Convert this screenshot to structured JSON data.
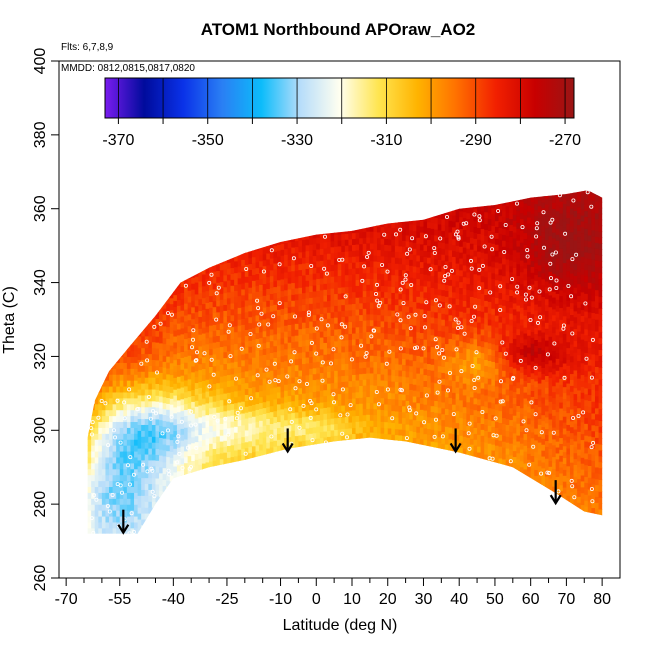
{
  "chart_data": {
    "type": "heatmap",
    "title": "ATOM1 Northbound APOraw_AO2",
    "flights_label": "Flts: 6,7,8,9",
    "dates_label": "MMDD: 0812,0815,0817,0820",
    "xlabel": "Latitude (deg N)",
    "ylabel": "Theta (C)",
    "xlim": [
      -72,
      85
    ],
    "ylim": [
      260,
      400
    ],
    "x_ticks_major": [
      -70,
      -55,
      -40,
      -25,
      -10,
      0,
      10,
      20,
      30,
      40,
      50,
      60,
      70,
      80
    ],
    "x_tick_labels": [
      "-70",
      "-55",
      "-40",
      "-25",
      "-10",
      "0",
      "10",
      "20",
      "30",
      "40",
      "50",
      "60",
      "70",
      "80"
    ],
    "x_ticks_minor": [
      -65,
      -60,
      -50,
      -45,
      -35,
      -30,
      -20,
      -15,
      -5,
      5,
      15,
      25,
      35,
      45,
      55,
      65,
      75
    ],
    "y_ticks": [
      260,
      280,
      300,
      320,
      340,
      360,
      380,
      400
    ],
    "y_tick_labels": [
      "260",
      "280",
      "300",
      "320",
      "340",
      "360",
      "380",
      "400"
    ],
    "colorbar": {
      "ticks": [
        -370,
        -350,
        -330,
        -310,
        -290,
        -270
      ],
      "tick_labels": [
        "-370",
        "-350",
        "-330",
        "-310",
        "-290",
        "-270"
      ],
      "range": [
        -373,
        -268
      ],
      "colors": [
        "#7a1cf0",
        "#000b9c",
        "#0a32e8",
        "#2a7ff4",
        "#0cbcfa",
        "#b7ddfa",
        "#fffff0",
        "#ffe550",
        "#ffb300",
        "#ff7000",
        "#f22000",
        "#c80000",
        "#9a1515"
      ]
    },
    "domain": {
      "top": [
        [
          -64,
          298
        ],
        [
          -62,
          308
        ],
        [
          -58,
          316
        ],
        [
          -52,
          323
        ],
        [
          -45,
          331
        ],
        [
          -38,
          340
        ],
        [
          -30,
          344
        ],
        [
          -20,
          348
        ],
        [
          -10,
          351
        ],
        [
          0,
          353
        ],
        [
          10,
          354
        ],
        [
          20,
          356
        ],
        [
          30,
          357
        ],
        [
          40,
          360
        ],
        [
          50,
          361
        ],
        [
          60,
          363
        ],
        [
          70,
          364
        ],
        [
          76,
          365
        ],
        [
          80,
          363
        ]
      ],
      "bottom": [
        [
          -64,
          272
        ],
        [
          -50,
          272
        ],
        [
          -45,
          280
        ],
        [
          -40,
          287
        ],
        [
          -30,
          290
        ],
        [
          -20,
          292
        ],
        [
          -8,
          295
        ],
        [
          5,
          297
        ],
        [
          15,
          298
        ],
        [
          25,
          297
        ],
        [
          35,
          295
        ],
        [
          40,
          294
        ],
        [
          55,
          290
        ],
        [
          67,
          283
        ],
        [
          75,
          278
        ],
        [
          80,
          277
        ]
      ]
    },
    "anomaly": [
      {
        "lon": -45,
        "th": 300,
        "dv": -22,
        "r": 16,
        "rt": 10
      },
      {
        "lon": -55,
        "th": 285,
        "dv": -28,
        "r": 14,
        "rt": 20
      },
      {
        "lon": -20,
        "th": 300,
        "dv": -12,
        "r": 16,
        "rt": 6
      },
      {
        "lon": 0,
        "th": 300,
        "dv": -8,
        "r": 10,
        "rt": 4
      },
      {
        "lon": 45,
        "th": 318,
        "dv": -10,
        "r": 8,
        "rt": 6
      },
      {
        "lon": 60,
        "th": 320,
        "dv": 12,
        "r": 10,
        "rt": 5
      },
      {
        "lon": 70,
        "th": 348,
        "dv": 10,
        "r": 12,
        "rt": 12
      }
    ],
    "profile_arrows": [
      {
        "lat": -54,
        "theta": 272
      },
      {
        "lat": -8,
        "theta": 294
      },
      {
        "lat": 39,
        "theta": 294
      },
      {
        "lat": 67,
        "theta": 280
      }
    ],
    "profile_arrow_color": "#000000",
    "sample_point_color": "#ffffff"
  }
}
